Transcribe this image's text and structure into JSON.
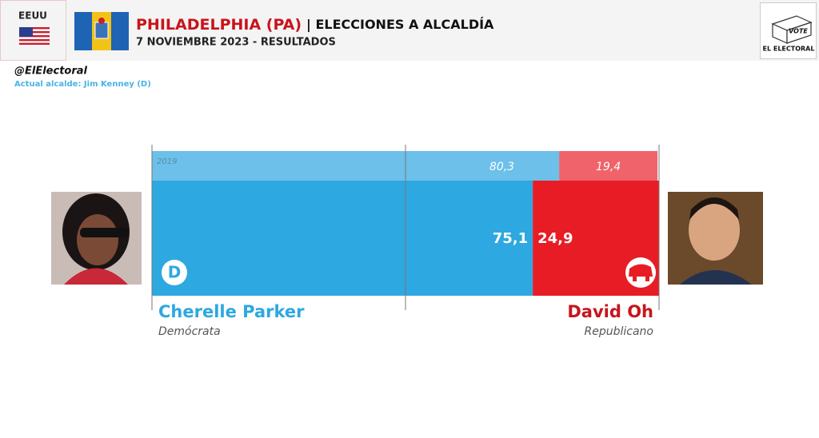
{
  "header": {
    "country": "EEUU",
    "title": "PHILADELPHIA (PA)",
    "title_suffix": "| ELECCIONES A ALCALDÍA",
    "subtitle": "7 NOVIEMBRE 2023 - RESULTADOS"
  },
  "logo": {
    "ballot": "VOTE",
    "brand": "EL ELECTORAL"
  },
  "account": "@ElElectoral",
  "note": "Actual alcalde: Jim Kenney (D)",
  "chart_data": {
    "type": "bar",
    "orientation": "horizontal",
    "stacked": true,
    "categories": [
      "2019",
      null
    ],
    "series": [
      {
        "name": "Demócrata",
        "candidate": "Cherelle Parker",
        "icon": "D",
        "colors": [
          "#6cc0e9",
          "#2ea8e0"
        ],
        "text_color": "#2ea8e0",
        "values": [
          80.3,
          75.1
        ],
        "value_labels": [
          "80,3",
          "75,1"
        ]
      },
      {
        "name": "Republicano",
        "candidate": "David Oh",
        "colors": [
          "#f0636b",
          "#e81c24"
        ],
        "text_color": "#c8141c",
        "values": [
          19.4,
          24.9
        ],
        "value_labels": [
          "19,4",
          "24,9"
        ]
      }
    ],
    "xlim": [
      0,
      100
    ],
    "xticks": [
      0,
      50,
      100
    ]
  }
}
